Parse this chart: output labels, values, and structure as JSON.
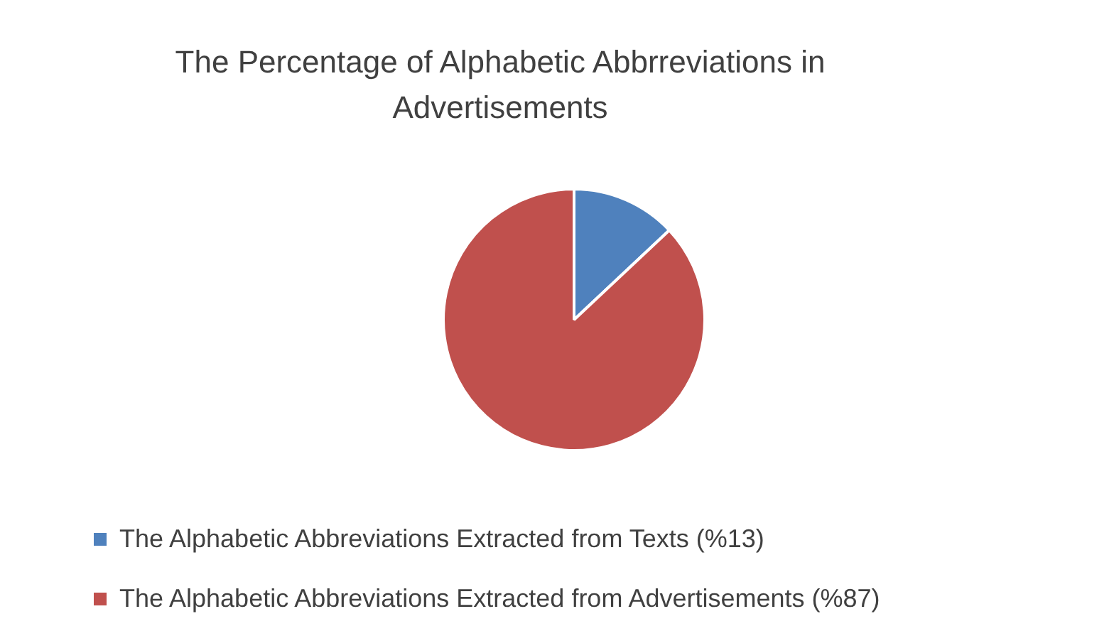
{
  "chart_data": {
    "type": "pie",
    "title": "The Percentage of Alphabetic Abbrreviations in Advertisements",
    "categories": [
      "The Alphabetic Abbreviations Extracted from Texts (%13)",
      "The Alphabetic Abbreviations Extracted from Advertisements (%87)"
    ],
    "values": [
      13,
      87
    ],
    "colors": [
      "#4f81bd",
      "#c0504d"
    ],
    "legend": "bottom"
  }
}
